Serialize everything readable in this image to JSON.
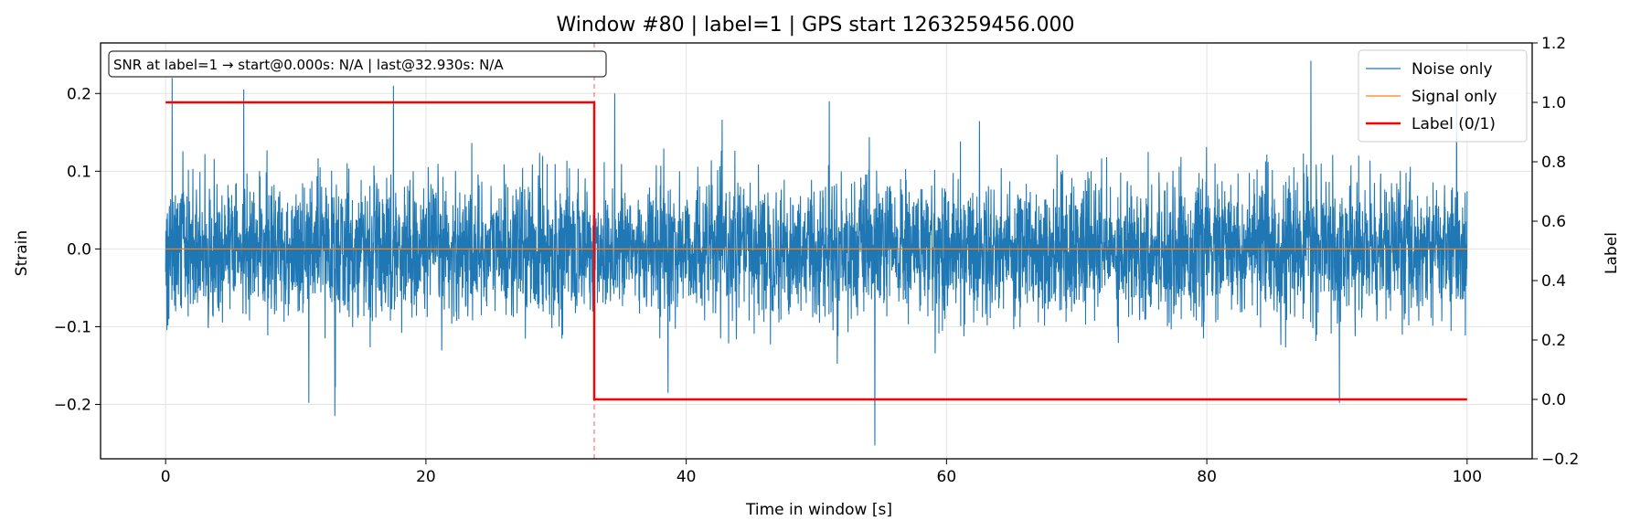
{
  "chart_data": {
    "type": "line",
    "title": "Window #80  |  label=1  |  GPS start 1263259456.000",
    "xlabel": "Time in window [s]",
    "ylabel": "Strain",
    "y2label": "Label",
    "xlim": [
      -5,
      105
    ],
    "ylim": [
      -0.27,
      0.265
    ],
    "y2lim": [
      -0.2,
      1.2
    ],
    "xticks": [
      0,
      20,
      40,
      60,
      80,
      100
    ],
    "xtick_labels": [
      "0",
      "20",
      "40",
      "60",
      "80",
      "100"
    ],
    "yticks": [
      -0.2,
      -0.1,
      0.0,
      0.1,
      0.2
    ],
    "ytick_labels": [
      "−0.2",
      "−0.1",
      "0.0",
      "0.1",
      "0.2"
    ],
    "y2ticks": [
      -0.2,
      0.0,
      0.2,
      0.4,
      0.6,
      0.8,
      1.0,
      1.2
    ],
    "y2tick_labels": [
      "−0.2",
      "0.0",
      "0.2",
      "0.4",
      "0.6",
      "0.8",
      "1.0",
      "1.2"
    ],
    "grid": true,
    "legend_position": "top-right",
    "series": [
      {
        "name": "Noise only",
        "color": "#1f77b4",
        "kind": "dense noise",
        "x_range": [
          0,
          100
        ],
        "typical_envelope": [
          -0.1,
          0.1
        ],
        "extremes": [
          {
            "x": 0.5,
            "y": 0.22
          },
          {
            "x": 6,
            "y": 0.205
          },
          {
            "x": 13,
            "y": -0.215
          },
          {
            "x": 11,
            "y": -0.198
          },
          {
            "x": 17.5,
            "y": 0.21
          },
          {
            "x": 34.5,
            "y": 0.2
          },
          {
            "x": 38.6,
            "y": -0.185
          },
          {
            "x": 54.5,
            "y": -0.253
          },
          {
            "x": 51,
            "y": 0.19
          },
          {
            "x": 88,
            "y": 0.242
          },
          {
            "x": 90.2,
            "y": -0.198
          },
          {
            "x": 99.2,
            "y": 0.2
          }
        ]
      },
      {
        "name": "Signal only",
        "color": "#ff7f0e",
        "x": [
          0,
          100
        ],
        "y": [
          0,
          0
        ]
      },
      {
        "name": "Label (0/1)",
        "color": "#ff0000",
        "axis": "right",
        "x": [
          0,
          32.93,
          32.93,
          100
        ],
        "y": [
          1,
          1,
          0,
          0
        ]
      }
    ],
    "vline": {
      "x": 32.93,
      "color": "#ff0000",
      "style": "dashed"
    },
    "annotation": "SNR at label=1 → start@0.000s: N/A | last@32.930s: N/A"
  }
}
